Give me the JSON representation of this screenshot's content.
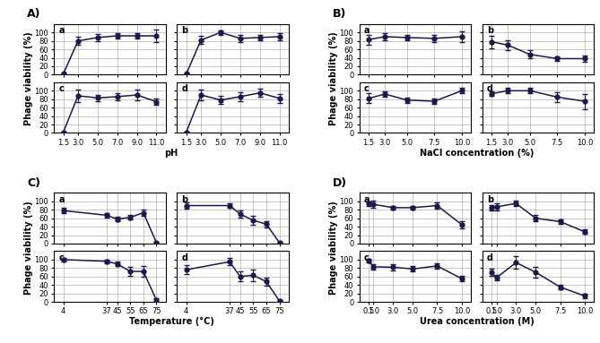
{
  "chart_data": [
    {
      "type": "line",
      "title": "A)",
      "ylabel": "Phage viability (%)",
      "annotations": [
        "a"
      ],
      "tick_labels": "y",
      "x": [
        1.5,
        3.0,
        5.0,
        7.0,
        9.0,
        11.0
      ],
      "values": [
        2,
        80,
        88,
        92,
        92,
        92
      ],
      "yerr": [
        2,
        10,
        8,
        6,
        6,
        15
      ],
      "xlim": [
        0.55,
        11.95
      ],
      "xticks": [
        1.5,
        {
          "value": 3.0,
          "label": "3.0"
        },
        {
          "value": 5.0,
          "label": "5.0"
        },
        {
          "value": 7.0,
          "label": "7.0"
        },
        {
          "value": 9.0,
          "label": "9.0"
        },
        {
          "value": 11.0,
          "label": "11.0"
        }
      ],
      "ylim": [
        0,
        120
      ],
      "yticks": [
        0,
        20,
        40,
        60,
        80,
        100
      ],
      "grid": true,
      "color": "#1a1a4a",
      "marker": "o"
    },
    {
      "type": "line",
      "annotations": [
        "b"
      ],
      "tick_labels": false,
      "x": [
        1.5,
        3.0,
        5.0,
        7.0,
        9.0,
        11.0
      ],
      "values": [
        2,
        82,
        100,
        86,
        88,
        90
      ],
      "yerr": [
        2,
        10,
        5,
        8,
        6,
        8
      ],
      "xlim": [
        0.55,
        11.95
      ],
      "xticks": [
        1.5,
        {
          "value": 3.0,
          "label": "3.0"
        },
        {
          "value": 5.0,
          "label": "5.0"
        },
        {
          "value": 7.0,
          "label": "7.0"
        },
        {
          "value": 9.0,
          "label": "9.0"
        },
        {
          "value": 11.0,
          "label": "11.0"
        }
      ],
      "ylim": [
        0,
        120
      ],
      "yticks": [
        0,
        20,
        40,
        60,
        80,
        100
      ],
      "grid": true,
      "color": "#1a1a4a",
      "marker": "o"
    },
    {
      "type": "line",
      "xlabel": "pH",
      "annotations": [
        "c"
      ],
      "x": [
        1.5,
        3.0,
        5.0,
        7.0,
        9.0,
        11.0
      ],
      "values": [
        2,
        88,
        83,
        86,
        90,
        74
      ],
      "yerr": [
        2,
        15,
        8,
        8,
        12,
        8
      ],
      "xlim": [
        0.55,
        11.95
      ],
      "xticks": [
        1.5,
        {
          "value": 3.0,
          "label": "3.0"
        },
        {
          "value": 5.0,
          "label": "5.0"
        },
        {
          "value": 7.0,
          "label": "7.0"
        },
        {
          "value": 9.0,
          "label": "9.0"
        },
        {
          "value": 11.0,
          "label": "11.0"
        }
      ],
      "ylim": [
        0,
        120
      ],
      "yticks": [
        0,
        20,
        40,
        60,
        80,
        100
      ],
      "grid": true,
      "color": "#1a1a4a",
      "marker": "o"
    },
    {
      "type": "line",
      "annotations": [
        "d"
      ],
      "tick_labels": "x",
      "x": [
        1.5,
        3.0,
        5.0,
        7.0,
        9.0,
        11.0
      ],
      "values": [
        2,
        90,
        78,
        86,
        95,
        82
      ],
      "yerr": [
        2,
        12,
        10,
        10,
        10,
        10
      ],
      "xlim": [
        0.55,
        11.95
      ],
      "xticks": [
        1.5,
        {
          "value": 3.0,
          "label": "3.0"
        },
        {
          "value": 5.0,
          "label": "5.0"
        },
        {
          "value": 7.0,
          "label": "7.0"
        },
        {
          "value": 9.0,
          "label": "9.0"
        },
        {
          "value": 11.0,
          "label": "11.0"
        }
      ],
      "ylim": [
        0,
        120
      ],
      "yticks": [
        0,
        20,
        40,
        60,
        80,
        100
      ],
      "grid": true,
      "color": "#1a1a4a",
      "marker": "o"
    },
    {
      "type": "line",
      "title": "B)",
      "ylabel": "Phage viability (%)",
      "annotations": [
        "a"
      ],
      "tick_labels": "y",
      "x": [
        1.5,
        3.0,
        5.0,
        7.5,
        10.0
      ],
      "values": [
        83,
        90,
        88,
        86,
        90
      ],
      "yerr": [
        12,
        8,
        6,
        8,
        12
      ],
      "xlim": [
        0.65,
        10.85
      ],
      "xticks": [
        1.5,
        {
          "value": 3.0,
          "label": "3.0"
        },
        {
          "value": 5.0,
          "label": "5.0"
        },
        7.5,
        {
          "value": 10.0,
          "label": "10.0"
        }
      ],
      "ylim": [
        0,
        120
      ],
      "yticks": [
        0,
        20,
        40,
        60,
        80,
        100
      ],
      "grid": true,
      "color": "#1a1a4a",
      "marker": "o"
    },
    {
      "type": "line",
      "annotations": [
        "b"
      ],
      "tick_labels": false,
      "x": [
        1.5,
        3.0,
        5.0,
        7.5,
        10.0
      ],
      "values": [
        78,
        70,
        48,
        38,
        38
      ],
      "yerr": [
        15,
        12,
        10,
        6,
        8
      ],
      "xlim": [
        0.65,
        10.85
      ],
      "xticks": [
        1.5,
        {
          "value": 3.0,
          "label": "3.0"
        },
        {
          "value": 5.0,
          "label": "5.0"
        },
        7.5,
        {
          "value": 10.0,
          "label": "10.0"
        }
      ],
      "ylim": [
        0,
        120
      ],
      "yticks": [
        0,
        20,
        40,
        60,
        80,
        100
      ],
      "grid": true,
      "color": "#1a1a4a",
      "marker": "o"
    },
    {
      "type": "line",
      "xlabel": "NaCl concentration (%)",
      "annotations": [
        "c"
      ],
      "x": [
        1.5,
        3.0,
        5.0,
        7.5,
        10.0
      ],
      "values": [
        82,
        92,
        78,
        75,
        100
      ],
      "yerr": [
        12,
        6,
        6,
        6,
        6
      ],
      "xlim": [
        0.65,
        10.85
      ],
      "xticks": [
        1.5,
        {
          "value": 3.0,
          "label": "3.0"
        },
        {
          "value": 5.0,
          "label": "5.0"
        },
        7.5,
        {
          "value": 10.0,
          "label": "10.0"
        }
      ],
      "ylim": [
        0,
        120
      ],
      "yticks": [
        0,
        20,
        40,
        60,
        80,
        100
      ],
      "grid": true,
      "color": "#1a1a4a",
      "marker": "o"
    },
    {
      "type": "line",
      "annotations": [
        "d"
      ],
      "tick_labels": "x",
      "x": [
        1.5,
        3.0,
        5.0,
        7.5,
        10.0
      ],
      "values": [
        93,
        100,
        100,
        85,
        75
      ],
      "yerr": [
        6,
        6,
        6,
        12,
        18
      ],
      "xlim": [
        0.65,
        10.85
      ],
      "xticks": [
        1.5,
        {
          "value": 3.0,
          "label": "3.0"
        },
        {
          "value": 5.0,
          "label": "5.0"
        },
        7.5,
        {
          "value": 10.0,
          "label": "10.0"
        }
      ],
      "ylim": [
        0,
        120
      ],
      "yticks": [
        0,
        20,
        40,
        60,
        80,
        100
      ],
      "grid": true,
      "color": "#1a1a4a",
      "marker": "o"
    },
    {
      "type": "line",
      "title": "C)",
      "ylabel": "Phage viability (%)",
      "annotations": [
        "a"
      ],
      "tick_labels": "y",
      "x": [
        4,
        37,
        45,
        55,
        65,
        75
      ],
      "values": [
        78,
        67,
        58,
        62,
        73,
        2
      ],
      "yerr": [
        6,
        6,
        5,
        5,
        8,
        2
      ],
      "xlim": [
        -3.1,
        82.1
      ],
      "xticks": [
        4,
        37,
        45,
        55,
        65,
        75
      ],
      "ylim": [
        0,
        120
      ],
      "yticks": [
        0,
        20,
        40,
        60,
        80,
        100
      ],
      "grid": true,
      "color": "#1a1a4a",
      "marker": "o"
    },
    {
      "type": "line",
      "annotations": [
        "b"
      ],
      "tick_labels": false,
      "x": [
        4,
        37,
        45,
        55,
        65,
        75
      ],
      "values": [
        90,
        90,
        70,
        55,
        46,
        2
      ],
      "yerr": [
        8,
        6,
        8,
        10,
        8,
        2
      ],
      "xlim": [
        -3.1,
        82.1
      ],
      "xticks": [
        4,
        37,
        45,
        55,
        65,
        75
      ],
      "ylim": [
        0,
        120
      ],
      "yticks": [
        0,
        20,
        40,
        60,
        80,
        100
      ],
      "grid": true,
      "color": "#1a1a4a",
      "marker": "o"
    },
    {
      "type": "line",
      "xlabel": "Temperature (°C)",
      "annotations": [
        "c"
      ],
      "x": [
        4,
        37,
        45,
        55,
        65,
        75
      ],
      "values": [
        100,
        96,
        90,
        72,
        72,
        4
      ],
      "yerr": [
        4,
        4,
        6,
        10,
        12,
        4
      ],
      "xlim": [
        -3.1,
        82.1
      ],
      "xticks": [
        4,
        37,
        45,
        55,
        65,
        75
      ],
      "ylim": [
        0,
        120
      ],
      "yticks": [
        0,
        20,
        40,
        60,
        80,
        100
      ],
      "grid": true,
      "color": "#1a1a4a",
      "marker": "o"
    },
    {
      "type": "line",
      "annotations": [
        "d"
      ],
      "tick_labels": "x",
      "x": [
        4,
        37,
        45,
        55,
        65,
        75
      ],
      "values": [
        76,
        95,
        60,
        63,
        48,
        2
      ],
      "yerr": [
        10,
        8,
        12,
        14,
        10,
        2
      ],
      "xlim": [
        -3.1,
        82.1
      ],
      "xticks": [
        4,
        37,
        45,
        55,
        65,
        75
      ],
      "ylim": [
        0,
        120
      ],
      "yticks": [
        0,
        20,
        40,
        60,
        80,
        100
      ],
      "grid": true,
      "color": "#1a1a4a",
      "marker": "o"
    },
    {
      "type": "line",
      "title": "D)",
      "ylabel": "Phage viability (%)",
      "annotations": [
        "a"
      ],
      "tick_labels": "y",
      "x": [
        0.5,
        1.0,
        3.0,
        5.0,
        7.5,
        10.0
      ],
      "values": [
        95,
        93,
        85,
        85,
        90,
        45
      ],
      "yerr": [
        5,
        8,
        5,
        5,
        8,
        8
      ],
      "xlim": [
        -0.45,
        10.95
      ],
      "xticks": [
        0.5,
        {
          "value": 1.0,
          "label": "1.0"
        },
        {
          "value": 3.0,
          "label": "3.0"
        },
        {
          "value": 5.0,
          "label": "5.0"
        },
        7.5,
        {
          "value": 10.0,
          "label": "10.0"
        }
      ],
      "ylim": [
        0,
        120
      ],
      "yticks": [
        0,
        20,
        40,
        60,
        80,
        100
      ],
      "grid": true,
      "color": "#1a1a4a",
      "marker": "o"
    },
    {
      "type": "line",
      "annotations": [
        "b"
      ],
      "tick_labels": false,
      "x": [
        0.5,
        1.0,
        3.0,
        5.0,
        7.5,
        10.0
      ],
      "values": [
        85,
        87,
        95,
        60,
        52,
        28
      ],
      "yerr": [
        6,
        8,
        6,
        8,
        6,
        5
      ],
      "xlim": [
        -0.45,
        10.95
      ],
      "xticks": [
        0.5,
        {
          "value": 1.0,
          "label": "1.0"
        },
        {
          "value": 3.0,
          "label": "3.0"
        },
        {
          "value": 5.0,
          "label": "5.0"
        },
        7.5,
        {
          "value": 10.0,
          "label": "10.0"
        }
      ],
      "ylim": [
        0,
        120
      ],
      "yticks": [
        0,
        20,
        40,
        60,
        80,
        100
      ],
      "grid": true,
      "color": "#1a1a4a",
      "marker": "o"
    },
    {
      "type": "line",
      "xlabel": "Urea concentration (M)",
      "annotations": [
        "c"
      ],
      "x": [
        0.5,
        1.0,
        3.0,
        5.0,
        7.5,
        10.0
      ],
      "values": [
        97,
        83,
        82,
        78,
        85,
        55
      ],
      "yerr": [
        4,
        6,
        8,
        6,
        6,
        6
      ],
      "xlim": [
        -0.45,
        10.95
      ],
      "xticks": [
        0.5,
        {
          "value": 1.0,
          "label": "1.0"
        },
        {
          "value": 3.0,
          "label": "3.0"
        },
        {
          "value": 5.0,
          "label": "5.0"
        },
        7.5,
        {
          "value": 10.0,
          "label": "10.0"
        }
      ],
      "ylim": [
        0,
        120
      ],
      "yticks": [
        0,
        20,
        40,
        60,
        80,
        100
      ],
      "grid": true,
      "color": "#1a1a4a",
      "marker": "o"
    },
    {
      "type": "line",
      "annotations": [
        "d"
      ],
      "tick_labels": "x",
      "x": [
        0.5,
        1.0,
        3.0,
        5.0,
        7.5,
        10.0
      ],
      "values": [
        70,
        57,
        93,
        70,
        35,
        14
      ],
      "yerr": [
        8,
        6,
        15,
        12,
        6,
        5
      ],
      "xlim": [
        -0.45,
        10.95
      ],
      "xticks": [
        0.5,
        {
          "value": 1.0,
          "label": "1.0"
        },
        {
          "value": 3.0,
          "label": "3.0"
        },
        {
          "value": 5.0,
          "label": "5.0"
        },
        7.5,
        {
          "value": 10.0,
          "label": "10.0"
        }
      ],
      "ylim": [
        0,
        120
      ],
      "yticks": [
        0,
        20,
        40,
        60,
        80,
        100
      ],
      "grid": true,
      "color": "#1a1a4a",
      "marker": "o"
    }
  ]
}
